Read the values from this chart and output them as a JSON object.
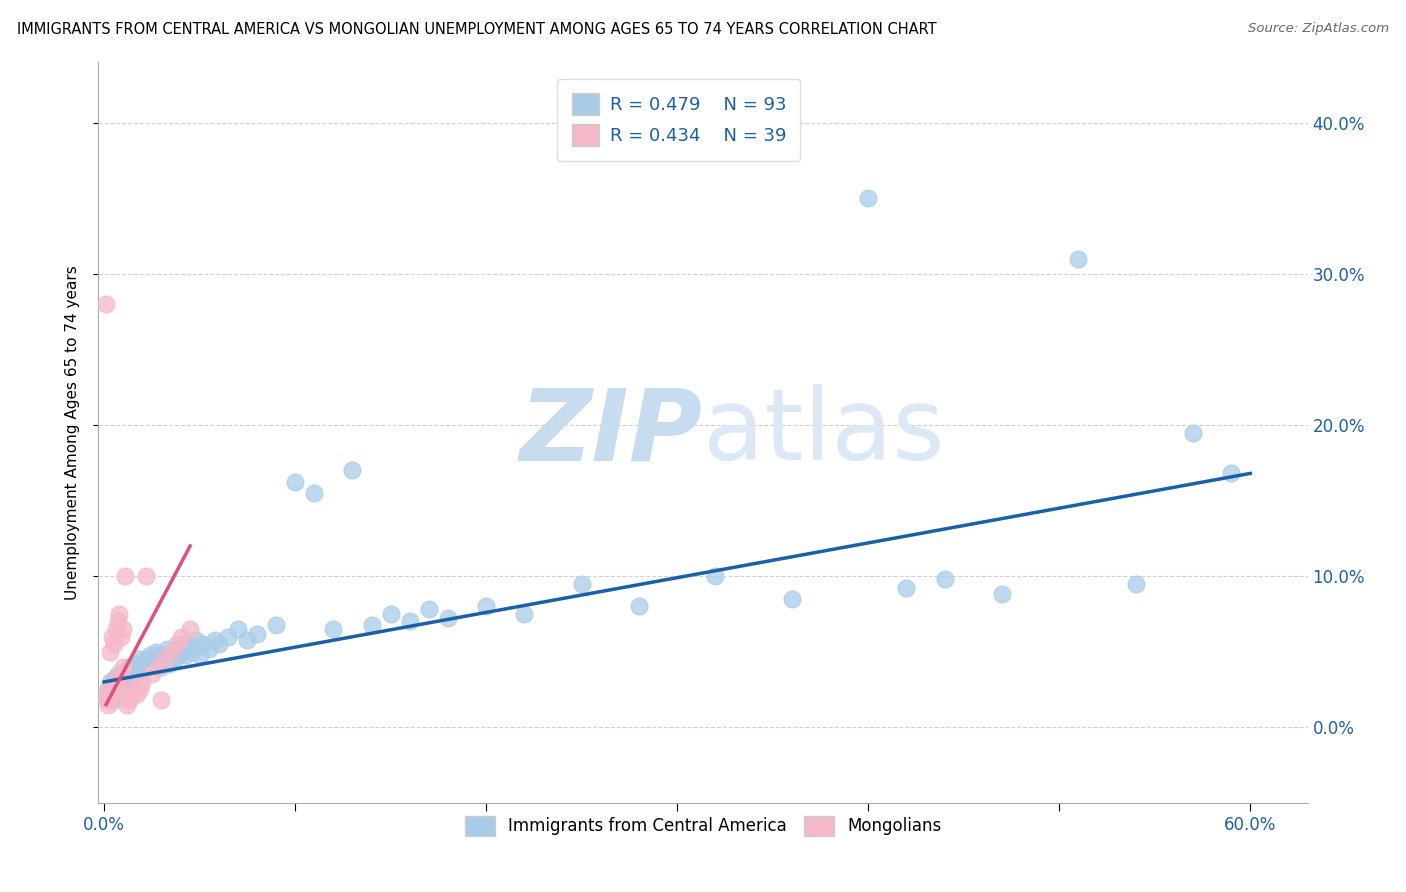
{
  "title": "IMMIGRANTS FROM CENTRAL AMERICA VS MONGOLIAN UNEMPLOYMENT AMONG AGES 65 TO 74 YEARS CORRELATION CHART",
  "source": "Source: ZipAtlas.com",
  "xlabel_blue": "Immigrants from Central America",
  "xlabel_pink": "Mongolians",
  "ylabel": "Unemployment Among Ages 65 to 74 years",
  "blue_R": 0.479,
  "blue_N": 93,
  "pink_R": 0.434,
  "pink_N": 39,
  "xlim": [
    -0.003,
    0.63
  ],
  "ylim": [
    -0.05,
    0.44
  ],
  "xticks": [
    0.0,
    0.1,
    0.2,
    0.3,
    0.4,
    0.5,
    0.6
  ],
  "xtick_labels": [
    "0.0%",
    "",
    "",
    "",
    "",
    "",
    "60.0%"
  ],
  "yticks": [
    0.0,
    0.1,
    0.2,
    0.3,
    0.4
  ],
  "ytick_labels_right": [
    "0.0%",
    "10.0%",
    "20.0%",
    "30.0%",
    "40.0%"
  ],
  "blue_color": "#a8cce8",
  "pink_color": "#f5b8c8",
  "blue_line_color": "#1a5fa8",
  "pink_line_color": "#e0507a",
  "watermark_zip": "ZIP",
  "watermark_atlas": "atlas",
  "watermark_color": "#dce8f5",
  "blue_scatter_x": [
    0.001,
    0.002,
    0.002,
    0.003,
    0.003,
    0.004,
    0.004,
    0.005,
    0.005,
    0.005,
    0.006,
    0.006,
    0.006,
    0.007,
    0.007,
    0.007,
    0.008,
    0.008,
    0.009,
    0.009,
    0.01,
    0.01,
    0.011,
    0.011,
    0.012,
    0.012,
    0.013,
    0.014,
    0.015,
    0.015,
    0.016,
    0.017,
    0.018,
    0.019,
    0.02,
    0.021,
    0.022,
    0.023,
    0.024,
    0.025,
    0.026,
    0.027,
    0.028,
    0.03,
    0.031,
    0.032,
    0.033,
    0.034,
    0.035,
    0.036,
    0.037,
    0.038,
    0.039,
    0.04,
    0.042,
    0.043,
    0.044,
    0.045,
    0.046,
    0.048,
    0.05,
    0.052,
    0.055,
    0.058,
    0.06,
    0.065,
    0.07,
    0.075,
    0.08,
    0.09,
    0.1,
    0.11,
    0.12,
    0.13,
    0.14,
    0.15,
    0.16,
    0.17,
    0.18,
    0.2,
    0.22,
    0.25,
    0.28,
    0.32,
    0.36,
    0.4,
    0.42,
    0.44,
    0.47,
    0.51,
    0.54,
    0.57,
    0.59
  ],
  "blue_scatter_y": [
    0.02,
    0.018,
    0.025,
    0.022,
    0.03,
    0.025,
    0.028,
    0.02,
    0.032,
    0.018,
    0.025,
    0.03,
    0.022,
    0.028,
    0.035,
    0.02,
    0.03,
    0.025,
    0.028,
    0.032,
    0.025,
    0.035,
    0.03,
    0.025,
    0.038,
    0.032,
    0.04,
    0.035,
    0.038,
    0.028,
    0.042,
    0.038,
    0.045,
    0.04,
    0.042,
    0.038,
    0.045,
    0.04,
    0.048,
    0.042,
    0.045,
    0.05,
    0.048,
    0.04,
    0.045,
    0.048,
    0.052,
    0.042,
    0.048,
    0.05,
    0.045,
    0.052,
    0.048,
    0.05,
    0.055,
    0.048,
    0.052,
    0.055,
    0.05,
    0.058,
    0.048,
    0.055,
    0.052,
    0.058,
    0.055,
    0.06,
    0.065,
    0.058,
    0.062,
    0.068,
    0.162,
    0.155,
    0.065,
    0.17,
    0.068,
    0.075,
    0.07,
    0.078,
    0.072,
    0.08,
    0.075,
    0.095,
    0.08,
    0.1,
    0.085,
    0.35,
    0.092,
    0.098,
    0.088,
    0.31,
    0.095,
    0.195,
    0.168
  ],
  "pink_scatter_x": [
    0.001,
    0.001,
    0.002,
    0.002,
    0.003,
    0.003,
    0.004,
    0.004,
    0.005,
    0.005,
    0.006,
    0.006,
    0.007,
    0.007,
    0.008,
    0.008,
    0.009,
    0.009,
    0.01,
    0.01,
    0.011,
    0.012,
    0.013,
    0.014,
    0.015,
    0.016,
    0.017,
    0.018,
    0.019,
    0.02,
    0.022,
    0.025,
    0.028,
    0.03,
    0.032,
    0.035,
    0.038,
    0.04,
    0.045
  ],
  "pink_scatter_y": [
    0.28,
    0.02,
    0.015,
    0.025,
    0.05,
    0.018,
    0.06,
    0.022,
    0.055,
    0.028,
    0.065,
    0.032,
    0.07,
    0.025,
    0.075,
    0.03,
    0.06,
    0.035,
    0.065,
    0.04,
    0.1,
    0.015,
    0.018,
    0.02,
    0.022,
    0.025,
    0.022,
    0.028,
    0.025,
    0.03,
    0.1,
    0.035,
    0.04,
    0.018,
    0.045,
    0.05,
    0.055,
    0.06,
    0.065
  ],
  "blue_trendline_x": [
    0.0,
    0.6
  ],
  "blue_trendline_y": [
    0.03,
    0.168
  ],
  "pink_trendline_x": [
    0.001,
    0.045
  ],
  "pink_trendline_y": [
    0.015,
    0.12
  ]
}
